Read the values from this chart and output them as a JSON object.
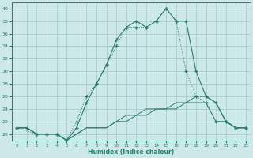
{
  "xlabel": "Humidex (Indice chaleur)",
  "background_color": "#cce8e8",
  "grid_color": "#aacccc",
  "line_color": "#2a7a6a",
  "xlim": [
    -0.5,
    23.5
  ],
  "ylim": [
    19,
    41
  ],
  "yticks": [
    20,
    22,
    24,
    26,
    28,
    30,
    32,
    34,
    36,
    38,
    40
  ],
  "xticks": [
    0,
    1,
    2,
    3,
    4,
    5,
    6,
    7,
    8,
    9,
    10,
    11,
    12,
    13,
    14,
    15,
    16,
    17,
    18,
    19,
    20,
    21,
    22,
    23
  ],
  "curve1_x": [
    0,
    1,
    2,
    3,
    4,
    5,
    6,
    7,
    8,
    9,
    10,
    11,
    12,
    13,
    14,
    15,
    16,
    17,
    18,
    19,
    20,
    21,
    22,
    23
  ],
  "curve1_y": [
    21,
    21,
    20,
    20,
    20,
    19,
    21,
    25,
    28,
    31,
    35,
    37,
    38,
    37,
    38,
    40,
    38,
    38,
    30,
    26,
    25,
    22,
    21,
    21
  ],
  "curve2_x": [
    0,
    2,
    3,
    4,
    5,
    6,
    7,
    8,
    9,
    10,
    11,
    12,
    13,
    14,
    15,
    16,
    17,
    18,
    19,
    20,
    21,
    22,
    23
  ],
  "curve2_y": [
    21,
    20,
    20,
    20,
    19,
    22,
    26,
    28,
    31,
    34,
    37,
    37,
    37,
    38,
    40,
    38,
    30,
    26,
    25,
    22,
    22,
    21,
    21
  ],
  "line1_x": [
    0,
    1,
    2,
    3,
    4,
    5,
    6,
    7,
    8,
    9,
    10,
    11,
    12,
    13,
    14,
    15,
    16,
    17,
    18,
    19,
    20,
    21,
    22,
    23
  ],
  "line1_y": [
    21,
    21,
    20,
    20,
    20,
    19,
    20,
    21,
    21,
    21,
    22,
    22,
    23,
    23,
    24,
    24,
    25,
    25,
    26,
    26,
    25,
    22,
    21,
    21
  ],
  "line2_x": [
    0,
    1,
    2,
    3,
    4,
    5,
    6,
    7,
    8,
    9,
    10,
    11,
    12,
    13,
    14,
    15,
    16,
    17,
    18,
    19,
    20,
    21,
    22,
    23
  ],
  "line2_y": [
    21,
    21,
    20,
    20,
    20,
    19,
    20,
    21,
    21,
    21,
    22,
    23,
    23,
    24,
    24,
    24,
    24,
    25,
    25,
    25,
    22,
    22,
    21,
    21
  ]
}
